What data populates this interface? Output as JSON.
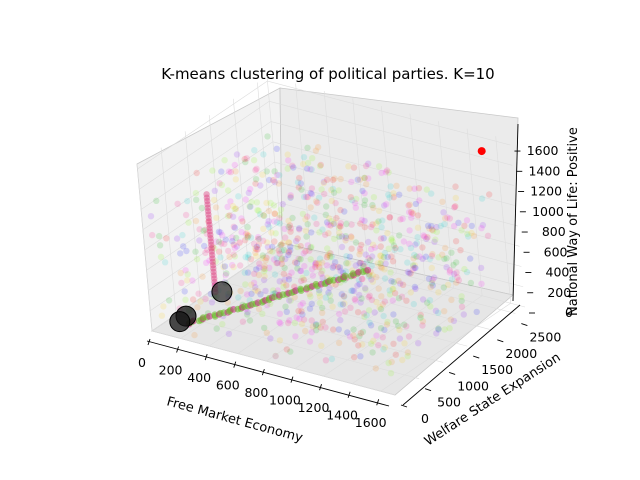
{
  "chart_data": {
    "type": "scatter",
    "title": "K-means clustering of political parties. K=10",
    "xlabel": "Free Market Economy",
    "ylabel": "Welfare State Expansion",
    "zlabel": "National Way of Life: Positive",
    "xlim": [
      0,
      1700
    ],
    "ylim": [
      0,
      2700
    ],
    "zlim": [
      0,
      1650
    ],
    "x_ticks": [
      0,
      200,
      400,
      600,
      800,
      1000,
      1200,
      1400,
      1600
    ],
    "y_ticks": [
      0,
      500,
      1000,
      1500,
      2000,
      2500
    ],
    "z_ticks": [
      0,
      200,
      400,
      600,
      800,
      1000,
      1200,
      1400,
      1600
    ],
    "grid": true,
    "clusters": 10,
    "highlighted_points": [
      {
        "x": 1600,
        "y": 2400,
        "z": 1600,
        "color": "#ff0000"
      },
      {
        "x": 380,
        "y": 400,
        "z": 400,
        "color": "#333333"
      },
      {
        "x": 180,
        "y": 200,
        "z": 150,
        "color": "#111111"
      },
      {
        "x": 150,
        "y": 150,
        "z": 100,
        "color": "#111111"
      }
    ],
    "cluster_colors": [
      "#ff0000",
      "#00b000",
      "#0000ff",
      "#ff00ff",
      "#00d0d0",
      "#ffd000",
      "#8000ff",
      "#ff8000",
      "#80ff00",
      "#ff0080"
    ]
  }
}
